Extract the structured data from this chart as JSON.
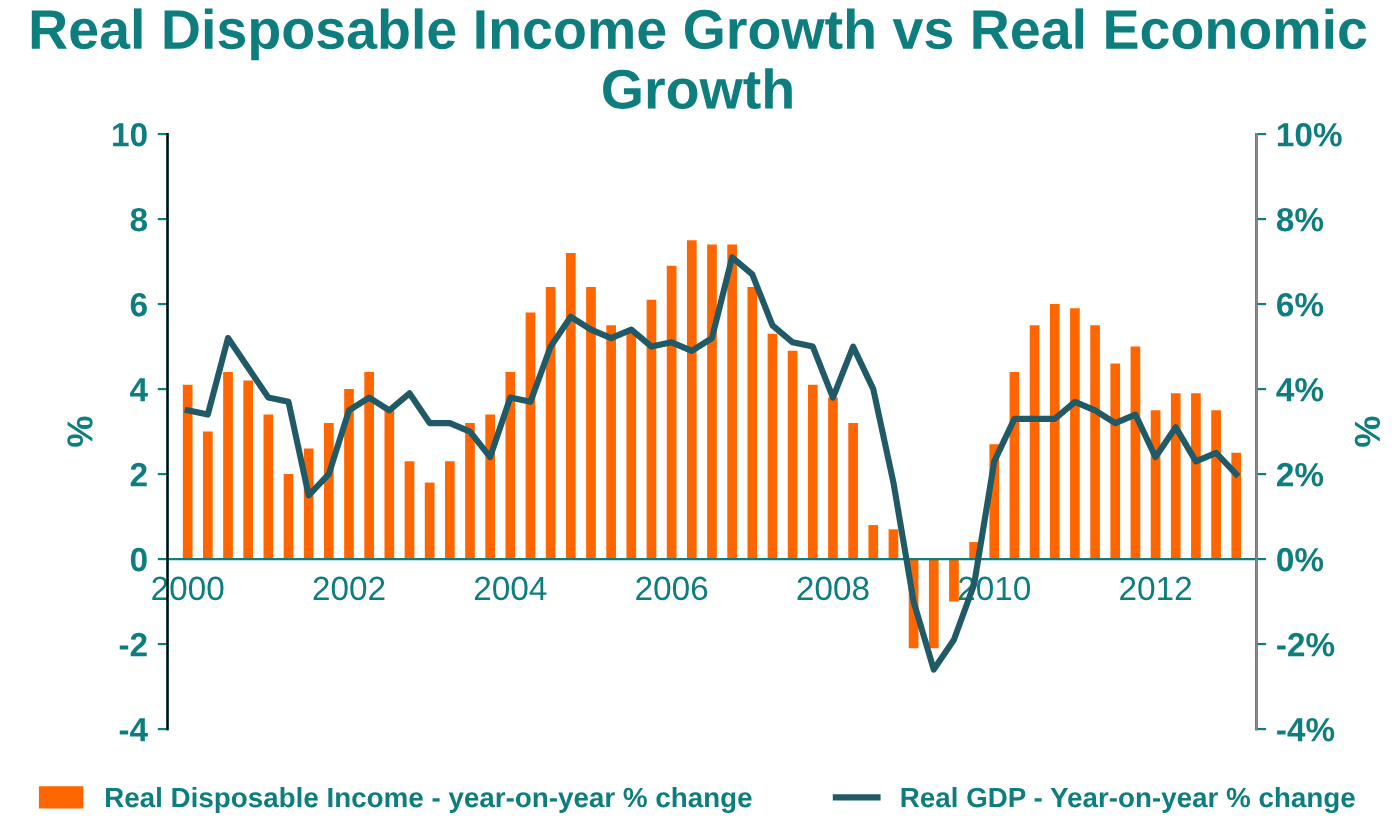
{
  "chart_data": {
    "type": "bar",
    "title": "Real Disposable Income Growth vs Real Economic Growth",
    "ylabel": "%",
    "y2label": "%",
    "x": [
      2000,
      2000.25,
      2000.5,
      2000.75,
      2001,
      2001.25,
      2001.5,
      2001.75,
      2002,
      2002.25,
      2002.5,
      2002.75,
      2003,
      2003.25,
      2003.5,
      2003.75,
      2004,
      2004.25,
      2004.5,
      2004.75,
      2005,
      2005.25,
      2005.5,
      2005.75,
      2006,
      2006.25,
      2006.5,
      2006.75,
      2007,
      2007.25,
      2007.5,
      2007.75,
      2008,
      2008.25,
      2008.5,
      2008.75,
      2009,
      2009.25,
      2009.5,
      2009.75,
      2010,
      2010.25,
      2010.5,
      2010.75,
      2011,
      2011.25,
      2011.5,
      2011.75,
      2012,
      2012.25,
      2012.5,
      2012.75,
      2013
    ],
    "series": [
      {
        "name": "Real Disposable Income - year-on-year % change",
        "color": "#ff6600",
        "values": [
          4.1,
          3.0,
          4.4,
          4.2,
          3.4,
          2.0,
          2.6,
          3.2,
          4.0,
          4.4,
          3.5,
          2.3,
          1.8,
          2.3,
          3.2,
          3.4,
          4.4,
          5.8,
          6.4,
          7.2,
          6.4,
          5.5,
          5.4,
          6.1,
          6.9,
          7.5,
          7.4,
          7.4,
          6.4,
          5.3,
          4.9,
          4.1,
          3.8,
          3.2,
          0.8,
          0.7,
          -2.1,
          -2.1,
          -1.0,
          0.4,
          2.7,
          4.4,
          5.5,
          6.0,
          5.9,
          5.5,
          4.6,
          5.0,
          3.5,
          3.9,
          3.9,
          3.5,
          2.5
        ]
      },
      {
        "name": "Real GDP - Year-on-year % change",
        "type": "line",
        "color": "#1f5a66",
        "values": [
          3.5,
          3.4,
          5.2,
          4.5,
          3.8,
          3.7,
          1.5,
          2.0,
          3.5,
          3.8,
          3.5,
          3.9,
          3.2,
          3.2,
          3.0,
          2.4,
          3.8,
          3.7,
          5.0,
          5.7,
          5.4,
          5.2,
          5.4,
          5.0,
          5.1,
          4.9,
          5.2,
          7.1,
          6.7,
          5.5,
          5.1,
          5.0,
          3.8,
          5.0,
          4.0,
          1.8,
          -1.0,
          -2.6,
          -1.9,
          -0.6,
          2.3,
          3.3,
          3.3,
          3.3,
          3.7,
          3.5,
          3.2,
          3.4,
          2.4,
          3.1,
          2.3,
          2.5,
          2.0
        ]
      }
    ],
    "xlim": [
      1999.75,
      2013.25
    ],
    "xticks": [
      2000,
      2002,
      2004,
      2006,
      2008,
      2010,
      2012
    ],
    "ylim": [
      -4,
      10
    ],
    "yticks": [
      -4,
      -2,
      0,
      2,
      4,
      6,
      8,
      10
    ],
    "y2lim": [
      -4,
      10
    ],
    "y2ticks": [
      {
        "value": -4,
        "label": "-4%"
      },
      {
        "value": -2,
        "label": "-2%"
      },
      {
        "value": 0,
        "label": "0%"
      },
      {
        "value": 2,
        "label": "2%"
      },
      {
        "value": 4,
        "label": "4%"
      },
      {
        "value": 6,
        "label": "6%"
      },
      {
        "value": 8,
        "label": "8%"
      },
      {
        "value": 10,
        "label": "10%"
      }
    ],
    "legend": "bottom",
    "grid": false
  }
}
